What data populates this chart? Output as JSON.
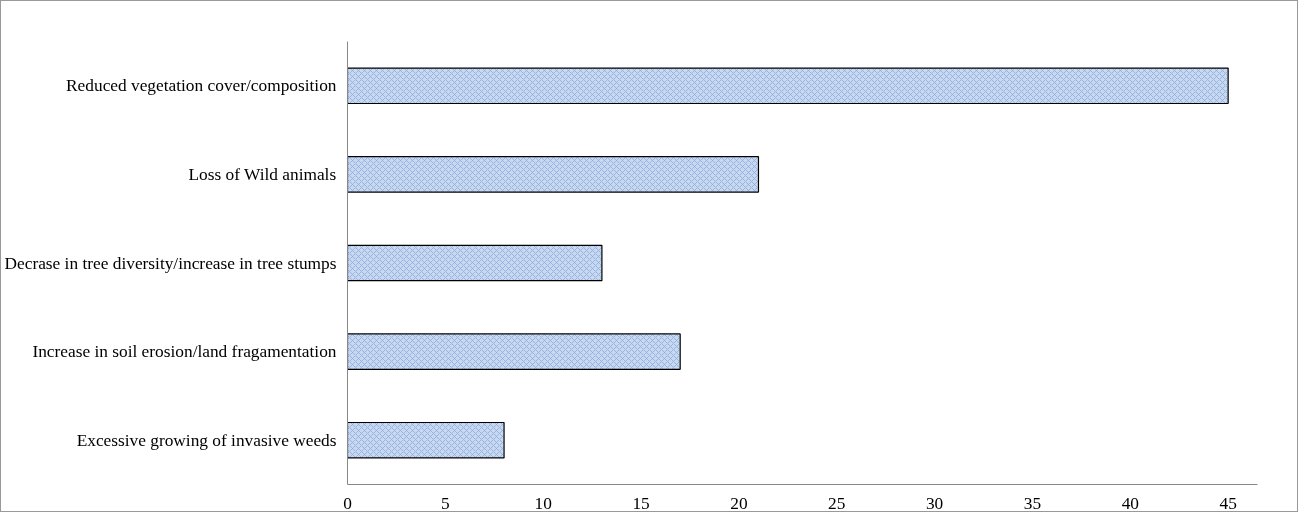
{
  "chart_data": {
    "type": "bar",
    "orientation": "horizontal",
    "categories": [
      "Reduced vegetation cover/composition",
      "Loss of Wild animals",
      "Decrase in tree diversity/increase in tree stumps",
      "Increase in soil erosion/land fragamentation",
      "Excessive growing of invasive weeds"
    ],
    "values": [
      45,
      21,
      13,
      17,
      8
    ],
    "color": "#c6d9f1",
    "xlim": [
      0,
      46.5
    ],
    "xticks": [
      0,
      5,
      10,
      15,
      20,
      25,
      30,
      35,
      40,
      45
    ],
    "grid": false
  }
}
